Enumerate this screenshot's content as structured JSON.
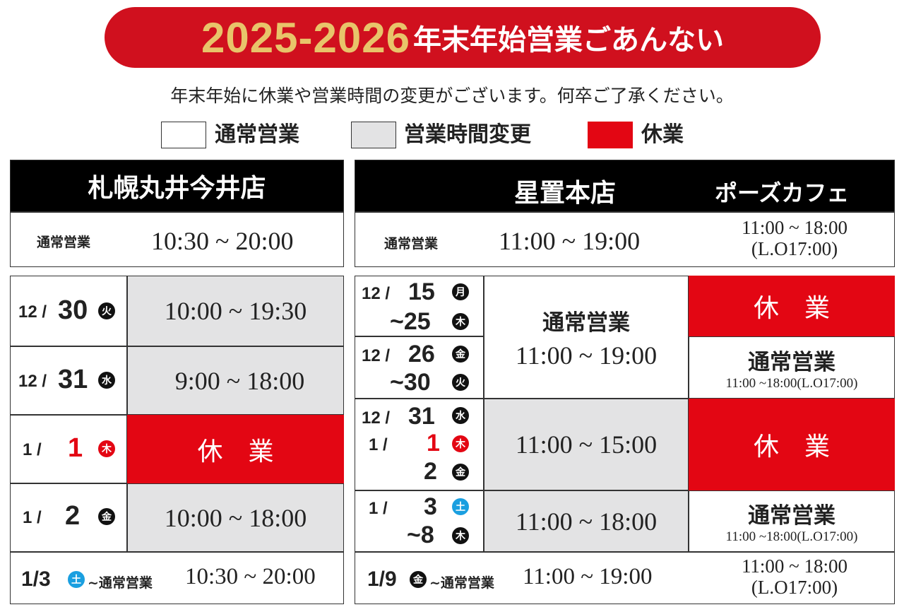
{
  "title": {
    "years": "2025-2026",
    "text": "年末年始営業ごあんない"
  },
  "subtitle": "年末年始に休業や営業時間の変更がございます。何卒ご了承ください。",
  "legend": [
    {
      "label": "通常営業",
      "color": "#ffffff"
    },
    {
      "label": "営業時間変更",
      "color": "#e3e3e4"
    },
    {
      "label": "休業",
      "color": "#e30613"
    }
  ],
  "left": {
    "store": "札幌丸井今井店",
    "normal_label": "通常営業",
    "normal_hours": "10:30 ~ 20:00",
    "rows": [
      {
        "month": "12 /",
        "day": "30",
        "weekday": "火",
        "hours": "10:00 ~ 19:30"
      },
      {
        "month": "12 /",
        "day": "31",
        "weekday": "水",
        "hours": "9:00 ~ 18:00"
      },
      {
        "month": "1 /",
        "day": "1",
        "weekday": "木",
        "hours": "休　業"
      },
      {
        "month": "1 /",
        "day": "2",
        "weekday": "金",
        "hours": "10:00 ~ 18:00"
      }
    ],
    "footer": {
      "date": "1/3",
      "weekday": "土",
      "label": "~通常営業",
      "hours": "10:30 ~ 20:00"
    }
  },
  "right": {
    "store": "星置本店",
    "cafe": "ポーズカフェ",
    "normal_label": "通常営業",
    "normal_hours": "11:00 ~ 19:00",
    "cafe_normal_hours": "11:00 ~ 18:00",
    "cafe_normal_lo": "(L.O17:00)",
    "rows": [
      {
        "month": "12 /",
        "day1": "15",
        "wd1": "月",
        "day2": "~25",
        "wd2": "木"
      },
      {
        "month": "12 /",
        "day1": "26",
        "wd1": "金",
        "day2": "~30",
        "wd2": "火"
      },
      {
        "month1": "12 /",
        "day1": "31",
        "wd1": "水",
        "month2": "1 /",
        "day2": "1",
        "wd2": "木",
        "day3": "2",
        "wd3": "金"
      },
      {
        "month": "1 /",
        "day1": "3",
        "wd1": "土",
        "day2": "~8",
        "wd2": "木"
      }
    ],
    "store_hours": {
      "a_label": "通常営業",
      "a_hours": "11:00 ~ 19:00",
      "b_hours": "11:00 ~ 15:00",
      "c_hours": "11:00 ~ 18:00"
    },
    "cafe_hours": {
      "a": "休　業",
      "b_label": "通常営業",
      "b_hours": "11:00 ~18:00(L.O17:00)",
      "c": "休　業",
      "d_label": "通常営業",
      "d_hours": "11:00 ~18:00(L.O17:00)"
    },
    "footer": {
      "date": "1/9",
      "weekday": "金",
      "label": "~通常営業",
      "hours": "11:00 ~ 19:00",
      "cafe_hours": "11:00 ~ 18:00",
      "cafe_lo": "(L.O17:00)"
    }
  }
}
